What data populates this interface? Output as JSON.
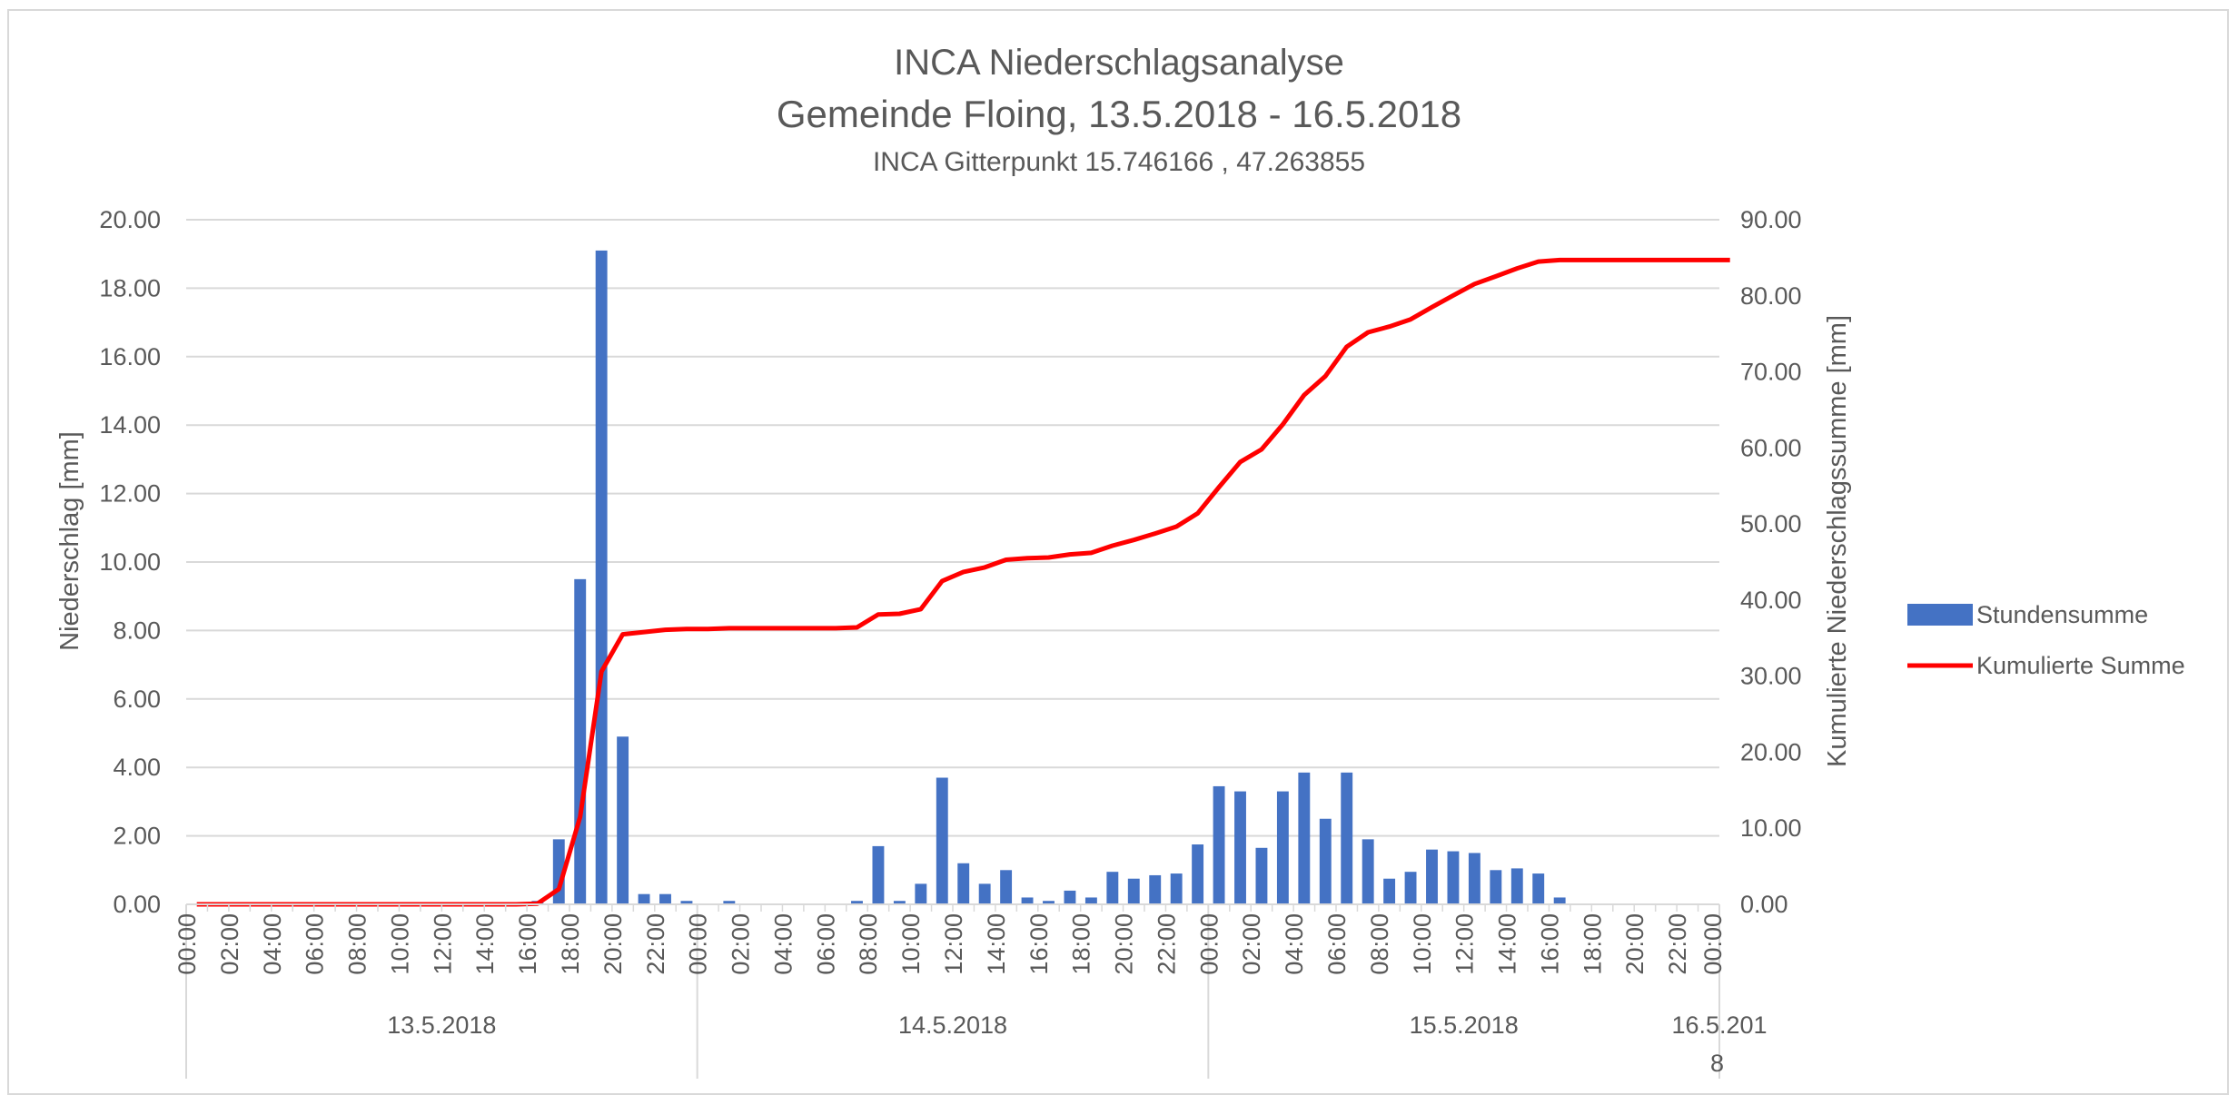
{
  "chart_data": {
    "type": "bar+line",
    "title": "INCA Niederschlagsanalyse",
    "subtitle": "Gemeinde Floing, 13.5.2018 - 16.5.2018",
    "subsubtitle": "INCA Gitterpunkt 15.746166 , 47.263855",
    "ylabel_left": "Niederschlag [mm]",
    "ylabel_right": "Kumulierte Niederschlagssumme [mm]",
    "ylim_left": [
      0,
      20
    ],
    "ylim_right": [
      0,
      90
    ],
    "yticks_left": [
      "0.00",
      "2.00",
      "4.00",
      "6.00",
      "8.00",
      "10.00",
      "12.00",
      "14.00",
      "16.00",
      "18.00",
      "20.00"
    ],
    "yticks_right": [
      "0.00",
      "10.00",
      "20.00",
      "30.00",
      "40.00",
      "50.00",
      "60.00",
      "70.00",
      "80.00",
      "90.00"
    ],
    "x_tick_labels": [
      "00:00",
      "02:00",
      "04:00",
      "06:00",
      "08:00",
      "10:00",
      "12:00",
      "14:00",
      "16:00",
      "18:00",
      "20:00",
      "22:00",
      "00:00",
      "02:00",
      "04:00",
      "06:00",
      "08:00",
      "10:00",
      "12:00",
      "14:00",
      "16:00",
      "18:00",
      "20:00",
      "22:00",
      "00:00",
      "02:00",
      "04:00",
      "06:00",
      "08:00",
      "10:00",
      "12:00",
      "14:00",
      "16:00",
      "18:00",
      "20:00",
      "22:00",
      "00:00"
    ],
    "date_groups": [
      "13.5.2018",
      "14.5.2018",
      "15.5.2018",
      "16.5.2018"
    ],
    "grid": true,
    "legend_position": "right",
    "colors": {
      "bars": "#4472c4",
      "line": "#ff0000",
      "grid": "#d9d9d9",
      "text": "#595959"
    },
    "series": [
      {
        "name": "Stundensumme",
        "type": "bar",
        "axis": "left",
        "values": [
          0,
          0,
          0,
          0,
          0,
          0,
          0,
          0,
          0,
          0,
          0,
          0,
          0,
          0,
          0,
          0,
          0.1,
          1.9,
          9.5,
          19.1,
          4.9,
          0.3,
          0.3,
          0.1,
          0,
          0.1,
          0,
          0,
          0,
          0,
          0,
          0.1,
          1.7,
          0.1,
          0.6,
          3.7,
          1.2,
          0.6,
          1.0,
          0.2,
          0.1,
          0.4,
          0.2,
          0.95,
          0.75,
          0.85,
          0.9,
          1.75,
          3.45,
          3.3,
          1.65,
          3.3,
          3.85,
          2.5,
          3.85,
          1.9,
          0.75,
          0.95,
          1.6,
          1.55,
          1.5,
          1.0,
          1.05,
          0.9,
          0.2,
          0,
          0,
          0,
          0,
          0,
          0,
          0,
          0
        ]
      },
      {
        "name": "Kumulierte Summe",
        "type": "line",
        "axis": "right",
        "values": [
          0,
          0,
          0,
          0,
          0,
          0,
          0,
          0,
          0,
          0,
          0,
          0,
          0,
          0,
          0,
          0,
          0.1,
          2.0,
          11.5,
          30.6,
          35.5,
          35.8,
          36.1,
          36.2,
          36.2,
          36.3,
          36.3,
          36.3,
          36.3,
          36.3,
          36.3,
          36.4,
          38.1,
          38.2,
          38.8,
          42.5,
          43.7,
          44.3,
          45.3,
          45.5,
          45.6,
          46.0,
          46.2,
          47.15,
          47.9,
          48.75,
          49.65,
          51.4,
          54.85,
          58.15,
          59.8,
          63.1,
          66.95,
          69.45,
          73.3,
          75.2,
          75.95,
          76.9,
          78.5,
          80.05,
          81.55,
          82.55,
          83.6,
          84.5,
          84.7,
          84.7,
          84.7,
          84.7,
          84.7,
          84.7,
          84.7,
          84.7,
          84.7
        ]
      }
    ]
  }
}
